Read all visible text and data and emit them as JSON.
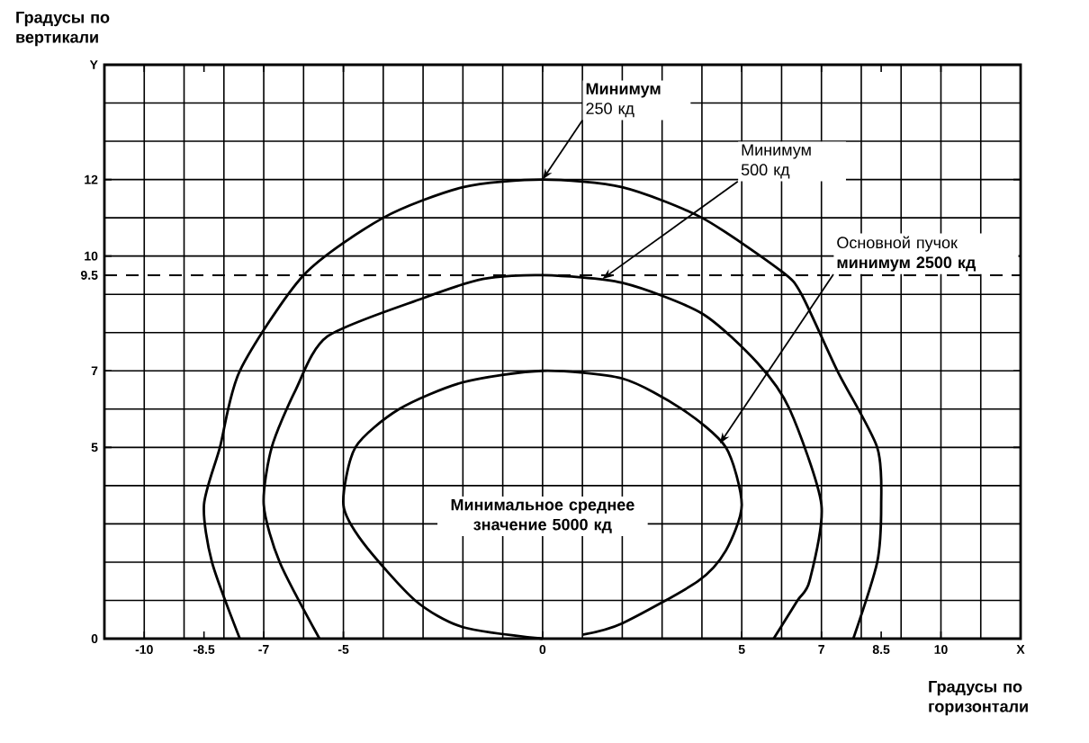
{
  "chart_data": {
    "type": "line",
    "xlabel": "Градусы по горизонтали",
    "ylabel": "Градусы по вертикали",
    "xlim": [
      -11,
      12
    ],
    "ylim": [
      0,
      15
    ],
    "xticks": [
      -10,
      -8.5,
      -7,
      -5,
      0,
      5,
      7,
      8.5,
      10,
      {
        "value": 12,
        "label": "X"
      }
    ],
    "yticks": [
      0,
      5,
      7,
      9.5,
      10,
      12,
      {
        "value": 15,
        "label": "Y"
      }
    ],
    "grid": true,
    "series": [
      {
        "color": "#000000",
        "x": [
          -7.6,
          -8.3,
          -8.5,
          -8.1,
          -7.6,
          -6.0,
          -4,
          -2,
          0,
          2,
          4,
          6,
          6.5,
          7.4,
          8.4,
          8.5,
          8.4,
          7.8
        ],
        "values": [
          0,
          2,
          3.5,
          5,
          7,
          9.5,
          11,
          11.8,
          12,
          11.8,
          11,
          9.6,
          9,
          7,
          5,
          3.5,
          2,
          0
        ]
      },
      {
        "color": "#000000",
        "x": [
          -5.6,
          -6.6,
          -7,
          -6.8,
          -6.2,
          -5.4,
          -3,
          -1.5,
          0,
          2,
          4,
          5.4,
          6.2,
          7,
          6.7,
          6.4,
          5.8
        ],
        "values": [
          0,
          2,
          3.5,
          5,
          6.5,
          7.9,
          8.9,
          9.4,
          9.5,
          9.3,
          8.5,
          7.2,
          6,
          3.5,
          1.5,
          1,
          0
        ]
      },
      {
        "color": "#000000",
        "x": [
          0,
          -2,
          -3.2,
          -4.5,
          -5,
          -4.7,
          -3.6,
          -2,
          0,
          2,
          3.5,
          4.6,
          5,
          4.6,
          3.9,
          2,
          1
        ],
        "values": [
          0,
          0.3,
          1,
          2.5,
          3.5,
          5,
          6,
          6.7,
          7,
          6.8,
          6,
          5,
          3.5,
          2.3,
          1.5,
          0.4,
          0.1
        ]
      }
    ],
    "ref_lines": [
      {
        "axis": "y",
        "value": 9.5,
        "line_style": "dashed"
      }
    ],
    "annotations": [
      {
        "text": "**Минимум** 250 кд",
        "x": 0,
        "y": 12
      },
      {
        "text": "Минимум 500 кд",
        "x": 1.5,
        "y": 9.4
      },
      {
        "text": "Основной пучок **минимум 2500 кд**",
        "x": 4.45,
        "y": 5.1
      },
      "Минимальное среднее значение 5000 кд"
    ]
  }
}
